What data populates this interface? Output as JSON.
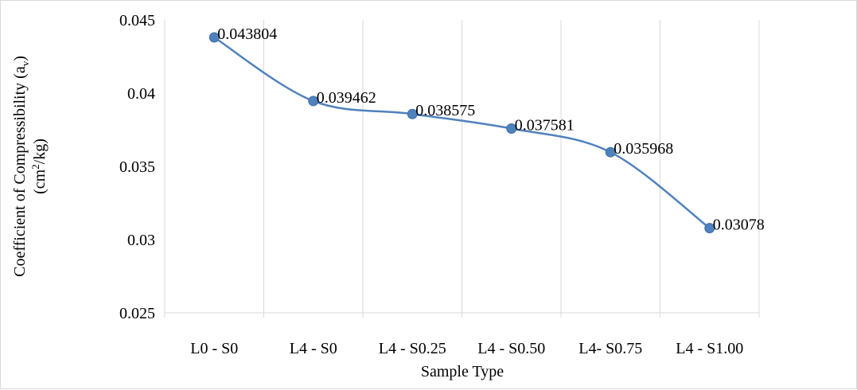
{
  "chart_data": {
    "type": "line",
    "categories": [
      "L0 - S0",
      "L4 - S0",
      "L4 - S0.25",
      "L4 - S0.50",
      "L4- S0.75",
      "L4 - S1.00"
    ],
    "series": [
      {
        "values": [
          0.043804,
          0.039462,
          0.038575,
          0.037581,
          0.035968,
          0.03078
        ],
        "labels": [
          "0.043804",
          "0.039462",
          "0.038575",
          "0.037581",
          "0.035968",
          "0.03078"
        ],
        "color": "#4f81bd",
        "smooth": true
      }
    ],
    "xlabel": "Sample Type",
    "ylabel_line1_pre": "Coefficient of Compressibility (a",
    "ylabel_line1_sub": "v",
    "ylabel_line1_post": ")",
    "ylabel_line2_pre": "(cm",
    "ylabel_line2_sup": "2",
    "ylabel_line2_post": "/kg)",
    "ylim": [
      0.025,
      0.045
    ],
    "yticks": [
      0.025,
      0.03,
      0.035,
      0.04,
      0.045
    ],
    "ytick_labels": [
      "0.025",
      "0.03",
      "0.035",
      "0.04",
      "0.045"
    ],
    "grid": "vertical",
    "legend": "none"
  }
}
